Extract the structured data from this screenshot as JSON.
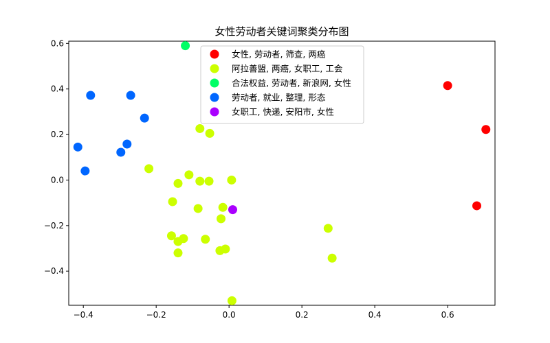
{
  "chart_data": {
    "type": "scatter",
    "title": "女性劳动者关键词聚类分布图",
    "xlabel": "",
    "ylabel": "",
    "xlim": [
      -0.44,
      0.73
    ],
    "ylim": [
      -0.55,
      0.61
    ],
    "xticks": [
      -0.4,
      -0.2,
      0.0,
      0.2,
      0.4,
      0.6
    ],
    "xtick_labels": [
      "−0.4",
      "−0.2",
      "0.0",
      "0.2",
      "0.4",
      "0.6"
    ],
    "yticks": [
      -0.4,
      -0.2,
      0.0,
      0.2,
      0.4,
      0.6
    ],
    "ytick_labels": [
      "−0.4",
      "−0.2",
      "0.0",
      "0.2",
      "0.4",
      "0.6"
    ],
    "grid": false,
    "legend_position": "top-center",
    "series": [
      {
        "name": "女性, 劳动者, 筛查, 两癌",
        "color": "#ff0000",
        "points": [
          [
            0.6,
            0.415
          ],
          [
            0.705,
            0.222
          ],
          [
            0.68,
            -0.113
          ]
        ]
      },
      {
        "name": "阿拉善盟, 两癌, 女职工, 工会",
        "color": "#ccff00",
        "points": [
          [
            -0.08,
            0.226
          ],
          [
            -0.053,
            0.205
          ],
          [
            -0.22,
            0.05
          ],
          [
            -0.11,
            0.023
          ],
          [
            -0.14,
            -0.015
          ],
          [
            -0.08,
            -0.005
          ],
          [
            -0.055,
            -0.005
          ],
          [
            0.007,
            0.0
          ],
          [
            -0.155,
            -0.095
          ],
          [
            -0.085,
            -0.125
          ],
          [
            -0.017,
            -0.12
          ],
          [
            -0.022,
            -0.17
          ],
          [
            -0.158,
            -0.245
          ],
          [
            -0.14,
            -0.27
          ],
          [
            -0.125,
            -0.257
          ],
          [
            -0.065,
            -0.26
          ],
          [
            -0.14,
            -0.32
          ],
          [
            -0.025,
            -0.31
          ],
          [
            -0.01,
            -0.303
          ],
          [
            0.272,
            -0.212
          ],
          [
            0.283,
            -0.343
          ],
          [
            0.008,
            -0.53
          ]
        ]
      },
      {
        "name": "合法权益, 劳动者, 新浪网, 女性",
        "color": "#00ff66",
        "points": [
          [
            -0.12,
            0.59
          ]
        ]
      },
      {
        "name": "劳动者, 就业, 整理, 形态",
        "color": "#0066ff",
        "points": [
          [
            -0.38,
            0.372
          ],
          [
            -0.27,
            0.372
          ],
          [
            -0.232,
            0.272
          ],
          [
            -0.28,
            0.158
          ],
          [
            -0.297,
            0.122
          ],
          [
            -0.415,
            0.145
          ],
          [
            -0.395,
            0.04
          ]
        ]
      },
      {
        "name": "女职工, 快递, 安阳市, 女性",
        "color": "#aa00ff",
        "points": [
          [
            0.01,
            -0.13
          ]
        ]
      }
    ]
  }
}
